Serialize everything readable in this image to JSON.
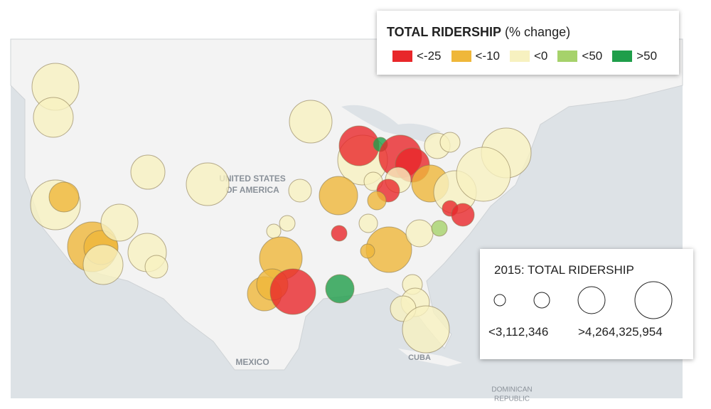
{
  "legend": {
    "title": "TOTAL RIDERSHIP",
    "subtitle": "(% change)",
    "items": [
      {
        "label": "<-25",
        "color": "#e8272a"
      },
      {
        "label": "<-10",
        "color": "#efb73a"
      },
      {
        "label": "<0",
        "color": "#f7f1c0"
      },
      {
        "label": "<50",
        "color": "#a6d26b"
      },
      {
        "label": ">50",
        "color": "#1f9e4a"
      }
    ]
  },
  "size_legend": {
    "title": "2015: TOTAL RIDERSHIP",
    "min_label": "<3,112,346",
    "max_label": ">4,264,325,954"
  },
  "map_labels": {
    "country_line1": "UNITED STATES",
    "country_line2": "OF AMERICA",
    "mexico": "MEXICO",
    "cuba": "CUBA",
    "dr_line1": "DOMINICAN",
    "dr_line2": "REPUBLIC"
  }
}
